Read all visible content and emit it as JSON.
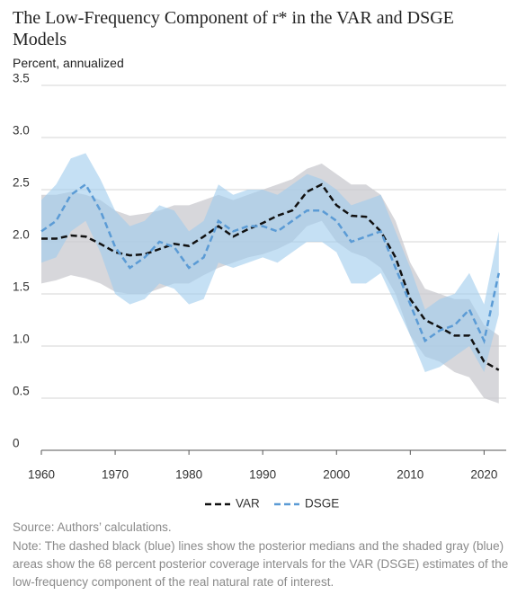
{
  "chart_data": {
    "type": "line",
    "title": "The Low-Frequency Component of r* in the VAR and DSGE Models",
    "y_label": "Percent, annualized",
    "source": "Source: Authors’ calculations.",
    "note": "Note: The dashed black (blue) lines show the posterior medians and the shaded gray (blue) areas show the 68 percent posterior coverage intervals for the VAR (DSGE) estimates of the low-frequency component of the real natural rate of interest.",
    "x": [
      1960,
      1962,
      1964,
      1966,
      1968,
      1970,
      1972,
      1974,
      1976,
      1978,
      1980,
      1982,
      1984,
      1986,
      1988,
      1990,
      1992,
      1994,
      1996,
      1998,
      2000,
      2002,
      2004,
      2006,
      2008,
      2010,
      2012,
      2014,
      2016,
      2018,
      2020,
      2022
    ],
    "xlim": [
      1960,
      2023
    ],
    "xticks": [
      1960,
      1970,
      1980,
      1990,
      2000,
      2010,
      2020
    ],
    "ylim": [
      0,
      3.5
    ],
    "yticks": [
      0,
      0.5,
      {
        "value": 1,
        "label": "1.0"
      },
      1.5,
      {
        "value": 2,
        "label": "2.0"
      },
      2.5,
      {
        "value": 3,
        "label": "3.0"
      },
      3.5
    ],
    "grid": true,
    "bands": [
      {
        "color": "#c9c9cf",
        "lower": [
          1.6,
          1.63,
          1.68,
          1.65,
          1.6,
          1.52,
          1.5,
          1.5,
          1.55,
          1.6,
          1.6,
          1.68,
          1.75,
          1.8,
          1.85,
          1.88,
          1.93,
          2.0,
          2.15,
          2.2,
          2.0,
          1.9,
          1.85,
          1.75,
          1.5,
          1.1,
          0.9,
          0.85,
          0.75,
          0.7,
          0.5,
          0.45
        ],
        "upper": [
          2.45,
          2.45,
          2.48,
          2.45,
          2.4,
          2.3,
          2.25,
          2.27,
          2.3,
          2.35,
          2.35,
          2.4,
          2.45,
          2.4,
          2.45,
          2.5,
          2.55,
          2.6,
          2.7,
          2.75,
          2.65,
          2.55,
          2.55,
          2.45,
          2.2,
          1.8,
          1.55,
          1.5,
          1.45,
          1.45,
          1.2,
          1.1
        ]
      },
      {
        "color": "#9fcbec",
        "lower": [
          1.8,
          1.85,
          2.1,
          2.2,
          1.9,
          1.5,
          1.4,
          1.45,
          1.6,
          1.55,
          1.4,
          1.45,
          1.8,
          1.75,
          1.8,
          1.85,
          1.8,
          1.9,
          2.0,
          2.0,
          1.9,
          1.6,
          1.6,
          1.7,
          1.4,
          1.1,
          0.75,
          0.8,
          0.9,
          1.0,
          0.75,
          1.3
        ],
        "upper": [
          2.4,
          2.55,
          2.8,
          2.85,
          2.6,
          2.3,
          2.15,
          2.2,
          2.35,
          2.3,
          2.1,
          2.2,
          2.55,
          2.45,
          2.5,
          2.5,
          2.45,
          2.55,
          2.65,
          2.6,
          2.5,
          2.35,
          2.4,
          2.45,
          2.1,
          1.75,
          1.35,
          1.45,
          1.5,
          1.7,
          1.4,
          2.1
        ]
      }
    ],
    "series": [
      {
        "name": "VAR",
        "color": "#111111",
        "values": [
          2.03,
          2.03,
          2.06,
          2.05,
          1.98,
          1.9,
          1.87,
          1.88,
          1.93,
          1.98,
          1.96,
          2.05,
          2.15,
          2.05,
          2.12,
          2.18,
          2.25,
          2.3,
          2.48,
          2.55,
          2.35,
          2.25,
          2.24,
          2.1,
          1.85,
          1.45,
          1.25,
          1.18,
          1.1,
          1.1,
          0.85,
          0.77
        ]
      },
      {
        "name": "DSGE",
        "color": "#5b9bd5",
        "values": [
          2.1,
          2.2,
          2.45,
          2.55,
          2.3,
          1.95,
          1.75,
          1.85,
          2.0,
          1.95,
          1.75,
          1.85,
          2.2,
          2.1,
          2.15,
          2.15,
          2.1,
          2.2,
          2.3,
          2.3,
          2.2,
          2.0,
          2.05,
          2.1,
          1.75,
          1.4,
          1.05,
          1.15,
          1.2,
          1.35,
          1.05,
          1.7
        ]
      }
    ]
  }
}
